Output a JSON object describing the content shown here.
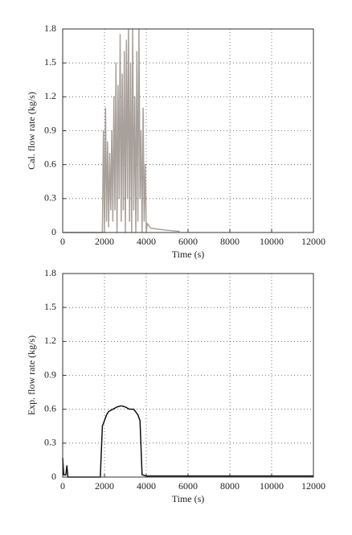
{
  "chart_data": [
    {
      "type": "line",
      "xlabel": "Time (s)",
      "ylabel": "Cal. flow rate (kg/s)",
      "color": "#a8a09a",
      "x": [
        0,
        1900,
        1950,
        2000,
        2050,
        2100,
        2150,
        2200,
        2250,
        2300,
        2350,
        2400,
        2450,
        2500,
        2550,
        2600,
        2650,
        2700,
        2750,
        2800,
        2850,
        2900,
        2950,
        3000,
        3050,
        3100,
        3150,
        3200,
        3250,
        3300,
        3350,
        3400,
        3450,
        3500,
        3550,
        3600,
        3650,
        3700,
        3750,
        3800,
        3850,
        3900,
        3950,
        4000,
        4050,
        4200,
        4500,
        5000,
        5600
      ],
      "values": [
        0,
        0,
        0.9,
        0,
        1.1,
        0.1,
        0.8,
        0.05,
        0.7,
        0.2,
        0.9,
        0.1,
        1.2,
        0.2,
        1.5,
        0,
        1.3,
        0.3,
        1.75,
        0.1,
        1.4,
        0.2,
        1.6,
        0,
        1.7,
        0.3,
        1.8,
        0.1,
        1.5,
        0,
        1.8,
        0.2,
        1.2,
        0,
        1.6,
        0.1,
        1.8,
        0.3,
        0.9,
        0,
        1.1,
        0.1,
        0.6,
        0,
        0.08,
        0.04,
        0.03,
        0.02,
        0.01
      ],
      "xlim": [
        0,
        12000
      ],
      "ylim": [
        0,
        1.8
      ],
      "xticks": [
        0,
        2000,
        4000,
        6000,
        8000,
        10000,
        12000
      ],
      "yticks": [
        0,
        0.3,
        0.6,
        0.9,
        1.2,
        1.5,
        1.8
      ],
      "grid": true
    },
    {
      "type": "line",
      "xlabel": "Time (s)",
      "ylabel": "Exp. flow rate (kg/s)",
      "color": "#111111",
      "x": [
        0,
        50,
        150,
        200,
        250,
        1800,
        1900,
        2000,
        2100,
        2200,
        2400,
        2600,
        2800,
        3000,
        3200,
        3400,
        3600,
        3700,
        3800,
        4000,
        12000
      ],
      "values": [
        0.17,
        0.02,
        0.02,
        0.1,
        0,
        0,
        0.45,
        0.5,
        0.55,
        0.58,
        0.6,
        0.62,
        0.63,
        0.62,
        0.6,
        0.6,
        0.55,
        0.5,
        0.02,
        0.01,
        0.01
      ],
      "xlim": [
        0,
        12000
      ],
      "ylim": [
        0,
        1.8
      ],
      "xticks": [
        0,
        2000,
        4000,
        6000,
        8000,
        10000,
        12000
      ],
      "yticks": [
        0,
        0.3,
        0.6,
        0.9,
        1.2,
        1.5,
        1.8
      ],
      "grid": true
    }
  ]
}
